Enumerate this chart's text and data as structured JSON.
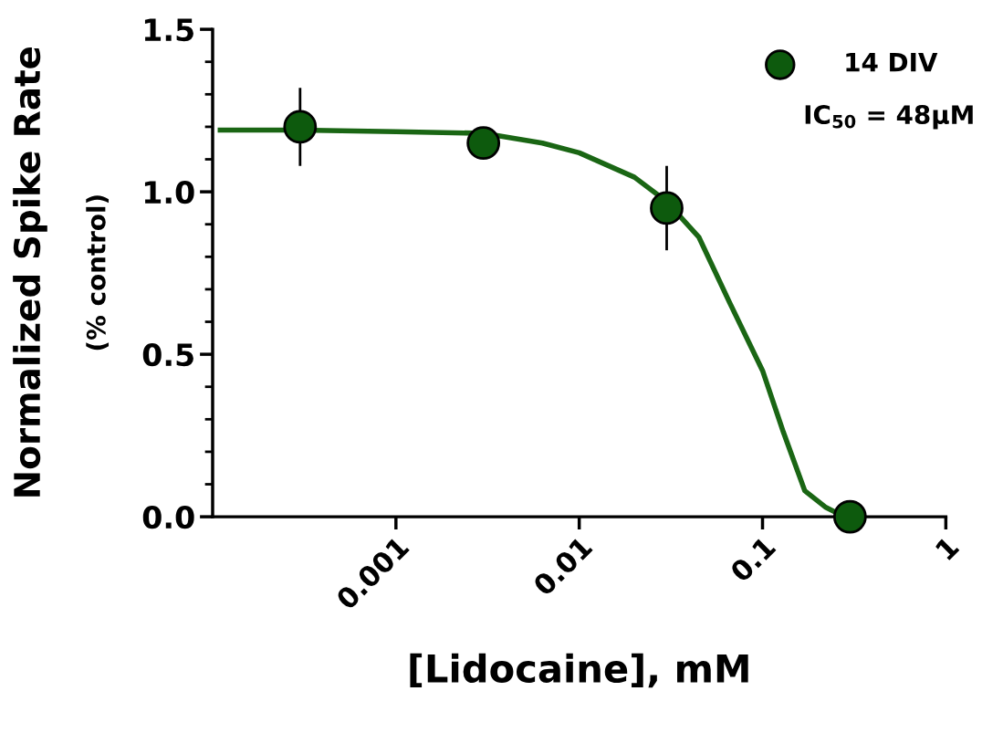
{
  "chart_data": {
    "type": "scatter",
    "xlabel": "[Lidocaine], mM",
    "ylabel": "Normalized Spike Rate",
    "subtitle": "(% control)",
    "annotations": [
      "IC$_{50}$ = 48µM"
    ],
    "log": "x",
    "xlim": [
      0.0001,
      1
    ],
    "xticks": [
      0.001,
      0.01,
      0.1,
      1
    ],
    "ylim": [
      0,
      1.5
    ],
    "yticks": [
      {
        "value": 0,
        "label": "0.0"
      },
      {
        "value": 0.5,
        "label": "0.5"
      },
      {
        "value": 1,
        "label": "1.0"
      },
      {
        "value": 1.5,
        "label": "1.5"
      }
    ],
    "grid": false,
    "legend": "top right",
    "series": [
      {
        "type": "line",
        "color": "#1a6614",
        "marker": "none",
        "line_style": "solid",
        "x": [
          0.00011,
          0.0003,
          0.001,
          0.003,
          0.0063,
          0.01,
          0.02,
          0.03,
          0.045,
          0.066,
          0.1,
          0.13,
          0.17,
          0.22,
          0.28
        ],
        "values": [
          1.19,
          1.19,
          1.185,
          1.18,
          1.15,
          1.12,
          1.045,
          0.97,
          0.86,
          0.66,
          0.45,
          0.26,
          0.08,
          0.03,
          0.0
        ]
      },
      {
        "name": "14 DIV",
        "color": "#0d5a0d",
        "marker": "circle",
        "x": [
          0.0003,
          0.003,
          0.03,
          0.3
        ],
        "values": [
          1.2,
          1.15,
          0.95,
          0.0
        ],
        "errors": [
          0.12,
          null,
          0.13,
          null
        ]
      }
    ]
  }
}
